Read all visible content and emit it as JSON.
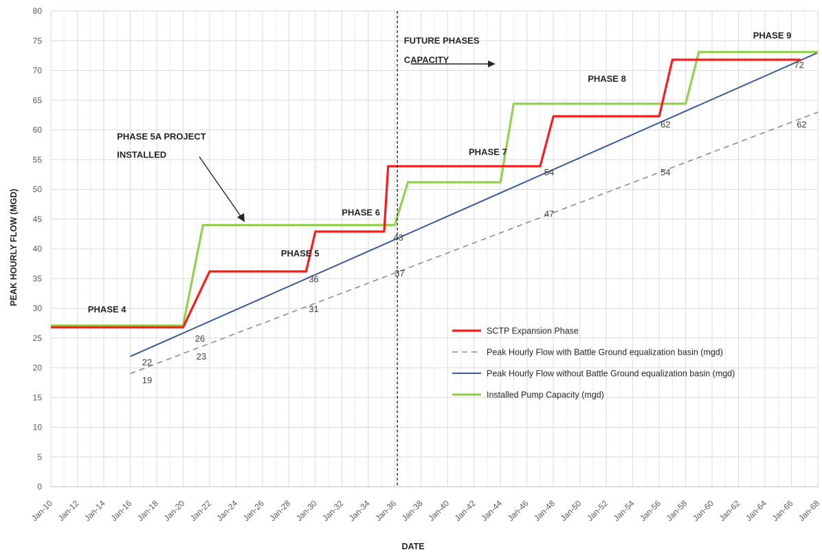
{
  "chart_data": {
    "type": "line",
    "xlabel": "DATE",
    "ylabel": "PEAK HOURLY FLOW (MGD)",
    "xlim": [
      2010,
      2068
    ],
    "ylim": [
      0,
      80
    ],
    "grid": true,
    "y_ticks": [
      0,
      5,
      10,
      15,
      20,
      25,
      30,
      35,
      40,
      45,
      50,
      55,
      60,
      65,
      70,
      75,
      80
    ],
    "x_ticks": [
      {
        "x": 2010,
        "label": "Jan-10"
      },
      {
        "x": 2012,
        "label": "Jan-12"
      },
      {
        "x": 2014,
        "label": "Jan-14"
      },
      {
        "x": 2016,
        "label": "Jan-16"
      },
      {
        "x": 2018,
        "label": "Jan-18"
      },
      {
        "x": 2020,
        "label": "Jan-20"
      },
      {
        "x": 2022,
        "label": "Jan-22"
      },
      {
        "x": 2024,
        "label": "Jan-24"
      },
      {
        "x": 2026,
        "label": "Jan-26"
      },
      {
        "x": 2028,
        "label": "Jan-28"
      },
      {
        "x": 2030,
        "label": "Jan-30"
      },
      {
        "x": 2032,
        "label": "Jan-32"
      },
      {
        "x": 2034,
        "label": "Jan-34"
      },
      {
        "x": 2036,
        "label": "Jan-36"
      },
      {
        "x": 2038,
        "label": "Jan-38"
      },
      {
        "x": 2040,
        "label": "Jan-40"
      },
      {
        "x": 2042,
        "label": "Jan-42"
      },
      {
        "x": 2044,
        "label": "Jan-44"
      },
      {
        "x": 2046,
        "label": "Jan-46"
      },
      {
        "x": 2048,
        "label": "Jan-48"
      },
      {
        "x": 2050,
        "label": "Jan-50"
      },
      {
        "x": 2052,
        "label": "Jan-52"
      },
      {
        "x": 2054,
        "label": "Jan-54"
      },
      {
        "x": 2056,
        "label": "Jan-56"
      },
      {
        "x": 2058,
        "label": "Jan-58"
      },
      {
        "x": 2060,
        "label": "Jan-60"
      },
      {
        "x": 2062,
        "label": "Jan-62"
      },
      {
        "x": 2064,
        "label": "Jan-64"
      },
      {
        "x": 2066,
        "label": "Jan-66"
      },
      {
        "x": 2068,
        "label": "Jan-68"
      }
    ],
    "series": [
      {
        "name": "SCTP Expansion Phase",
        "color": "#ff1a1a",
        "dash": "solid",
        "points": [
          [
            2010,
            26.8
          ],
          [
            2020,
            26.8
          ],
          [
            2022,
            36.2
          ],
          [
            2029.3,
            36.2
          ],
          [
            2030,
            42.9
          ],
          [
            2035.2,
            42.9
          ],
          [
            2035.5,
            53.9
          ],
          [
            2047,
            53.9
          ],
          [
            2048,
            62.3
          ],
          [
            2056,
            62.3
          ],
          [
            2057,
            71.8
          ],
          [
            2066.7,
            71.8
          ]
        ]
      },
      {
        "name": "Peak Hourly Flow with Battle Ground equalization basin (mgd)",
        "color": "#8c8c8c",
        "dash": "dashed",
        "points": [
          [
            2016,
            19
          ],
          [
            2068,
            63
          ]
        ]
      },
      {
        "name": "Peak Hourly Flow without Battle Ground equalization basin (mgd)",
        "color": "#3a5a98",
        "dash": "solid",
        "points": [
          [
            2016,
            21.9
          ],
          [
            2068,
            73
          ]
        ]
      },
      {
        "name": "Installed Pump Capacity (mgd)",
        "color": "#92d050",
        "dash": "solid",
        "points": [
          [
            2010,
            27.1
          ],
          [
            2020,
            27.1
          ],
          [
            2021.5,
            44
          ],
          [
            2035.5,
            44
          ],
          [
            2036,
            44
          ],
          [
            2037,
            51.2
          ],
          [
            2044,
            51.2
          ],
          [
            2045,
            64.4
          ],
          [
            2058,
            64.4
          ],
          [
            2059,
            73.1
          ],
          [
            2068,
            73.1
          ]
        ]
      }
    ],
    "data_labels": [
      {
        "x": 2016.9,
        "y": 22,
        "text": "22"
      },
      {
        "x": 2020.9,
        "y": 26,
        "text": "26"
      },
      {
        "x": 2029.5,
        "y": 36,
        "text": "36"
      },
      {
        "x": 2035.9,
        "y": 43,
        "text": "43"
      },
      {
        "x": 2047.3,
        "y": 54,
        "text": "54"
      },
      {
        "x": 2056.1,
        "y": 62,
        "text": "62"
      },
      {
        "x": 2066.2,
        "y": 72,
        "text": "72"
      },
      {
        "x": 2016.9,
        "y": 19,
        "text": "19"
      },
      {
        "x": 2021.0,
        "y": 23,
        "text": "23"
      },
      {
        "x": 2029.5,
        "y": 31,
        "text": "31"
      },
      {
        "x": 2036.0,
        "y": 37,
        "text": "37"
      },
      {
        "x": 2047.3,
        "y": 47,
        "text": "47"
      },
      {
        "x": 2056.1,
        "y": 54,
        "text": "54"
      },
      {
        "x": 2066.4,
        "y": 62,
        "text": "62"
      }
    ],
    "annotations": [
      {
        "x": 2012.8,
        "y": 29.3,
        "text": "PHASE 4"
      },
      {
        "x": 2027.4,
        "y": 38.7,
        "text": "PHASE 5"
      },
      {
        "x": 2032.0,
        "y": 45.6,
        "text": "PHASE 6"
      },
      {
        "x": 2041.6,
        "y": 55.8,
        "text": "PHASE 7"
      },
      {
        "x": 2050.6,
        "y": 68.1,
        "text": "PHASE 8"
      },
      {
        "x": 2063.1,
        "y": 75.4,
        "text": "PHASE 9"
      },
      {
        "x": 2015.0,
        "y": 58.4,
        "text": "PHASE 5A PROJECT"
      },
      {
        "x": 2015.0,
        "y": 55.3,
        "text": "INSTALLED"
      },
      {
        "x": 2036.7,
        "y": 74.5,
        "text": "FUTURE PHASES"
      },
      {
        "x": 2036.7,
        "y": 71.3,
        "text": "CAPACITY"
      }
    ],
    "vertical_marker": {
      "x": 2036.2,
      "style": "dashed"
    }
  }
}
